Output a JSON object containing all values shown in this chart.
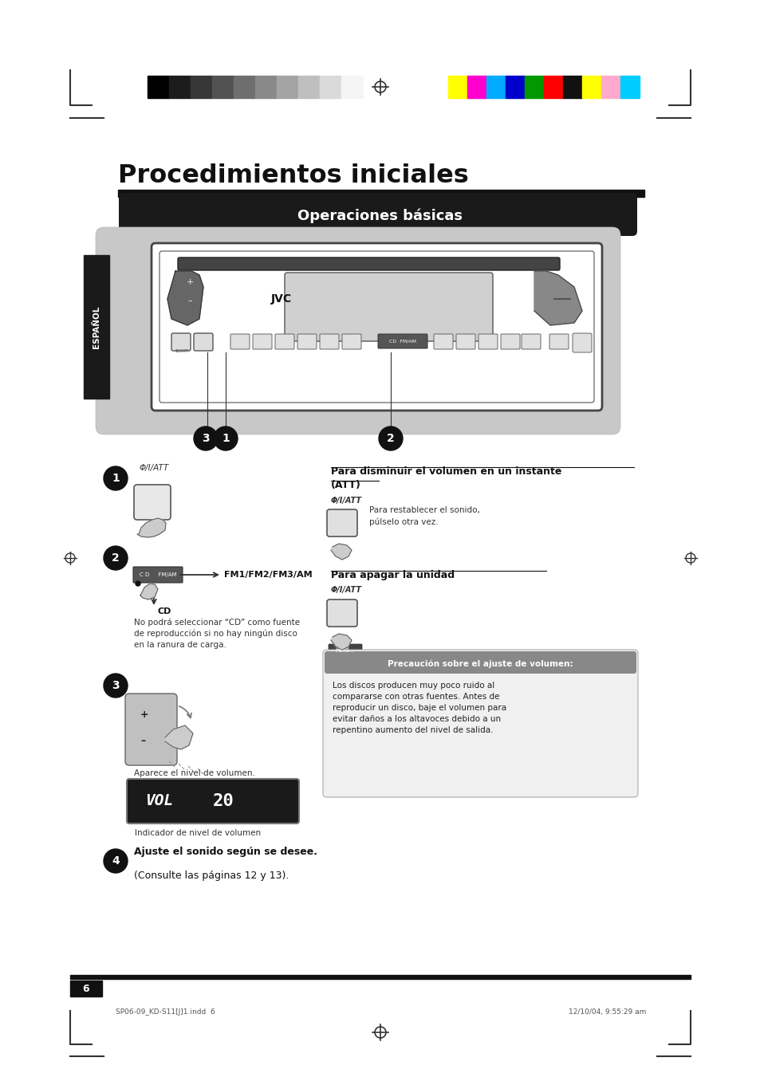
{
  "bg_color": "#ffffff",
  "title": "Procedimientos iniciales",
  "section_title": "Operaciones básicas",
  "section_title_bg": "#1a1a1a",
  "section_title_color": "#ffffff",
  "page_number": "6",
  "footer_left": "SP06-09_KD-S11[J]1.indd  6",
  "footer_right": "12/10/04, 9:55:29 am",
  "phi_att": "Φ/I/ATT",
  "label_fm": "FM1/FM2/FM3/AM",
  "label_cd": "CD",
  "note1": "No podrá seleccionar “CD” como fuente\nde reproducción si no hay ningún disco\nen la ranura de carga.",
  "vol_label": "Aparece el nivel de volumen.",
  "vol_indicator": "Indicador de nivel de volumen",
  "step4_bold": "Ajuste el sonido según se desee.",
  "step4_normal": "(Consulte las páginas 12 y 13).",
  "att_title_line1": "Para disminuir el volumen en un instante",
  "att_title_line2": "(ATT)",
  "att_body": "Para restablecer el sonido,\npúlselo otra vez.",
  "off_title": "Para apagar la unidad",
  "caution_title": "Precaución sobre el ajuste de volumen:",
  "caution_body": "Los discos producen muy poco ruido al\ncompararse con otras fuentes. Antes de\nreproducir un disco, baje el volumen para\nevitar daños a los altavoces debido a un\nrepentino aumento del nivel de salida.",
  "grayscale_colors": [
    "#000000",
    "#1c1c1c",
    "#373737",
    "#525252",
    "#6e6e6e",
    "#898989",
    "#a4a4a4",
    "#bfbfbf",
    "#dadada",
    "#f5f5f5"
  ],
  "color_bars": [
    "#ffff00",
    "#ff00cc",
    "#00aaff",
    "#0000cc",
    "#009900",
    "#ff0000",
    "#111111",
    "#ffff00",
    "#ffaacc",
    "#00ccff"
  ],
  "espanol_bg": "#1a1a1a",
  "espanol_color": "#ffffff",
  "device_bg": "#c8c8c8",
  "caution_bg": "#888888",
  "caution_box_bg": "#f0f0f0",
  "bracket_color": "#333333"
}
